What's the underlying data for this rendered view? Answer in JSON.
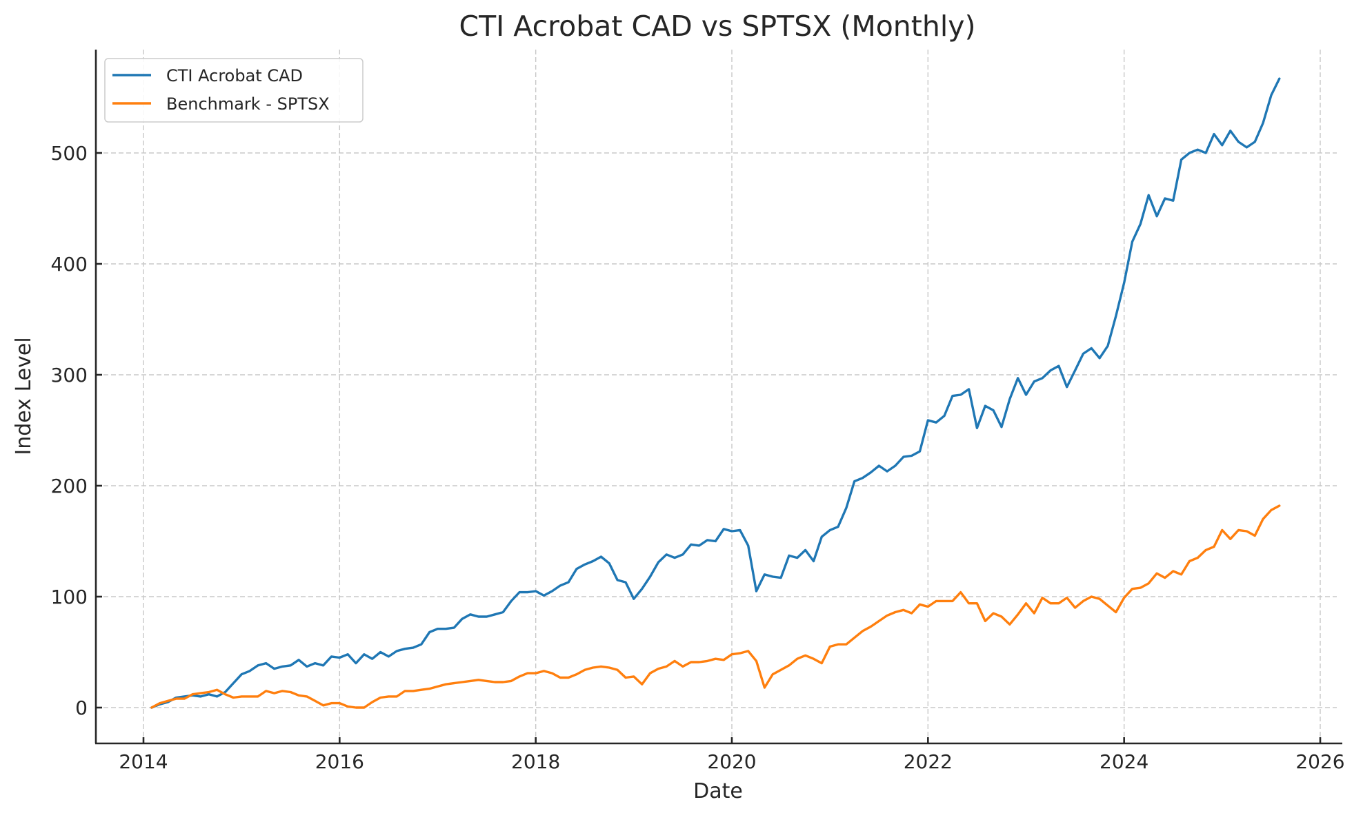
{
  "chart_data": {
    "type": "line",
    "title": "CTI Acrobat CAD vs SPTSX (Monthly)",
    "xlabel": "Date",
    "ylabel": "Index Level",
    "x_start": "2014-01",
    "x_frequency": "monthly",
    "xlim": [
      2013.55,
      2026.17
    ],
    "ylim": [
      -28,
      595
    ],
    "xticks": [
      "2014",
      "2016",
      "2018",
      "2020",
      "2022",
      "2024",
      "2026"
    ],
    "xtick_values": [
      2014,
      2016,
      2018,
      2020,
      2022,
      2024,
      2026
    ],
    "yticks": [
      "0",
      "100",
      "200",
      "300",
      "400",
      "500"
    ],
    "ytick_values": [
      0,
      100,
      200,
      300,
      400,
      500
    ],
    "grid": true,
    "legend_position": "top-left",
    "series": [
      {
        "name": "CTI Acrobat CAD",
        "color": "#1f77b4",
        "values": [
          0,
          3,
          5,
          9,
          10,
          11,
          10,
          12,
          10,
          14,
          22,
          30,
          33,
          38,
          40,
          35,
          37,
          38,
          43,
          37,
          40,
          38,
          46,
          45,
          48,
          40,
          48,
          44,
          50,
          46,
          51,
          53,
          54,
          57,
          68,
          71,
          71,
          72,
          80,
          84,
          82,
          82,
          84,
          86,
          96,
          104,
          104,
          105,
          101,
          105,
          110,
          113,
          125,
          129,
          132,
          136,
          130,
          115,
          113,
          98,
          107,
          118,
          131,
          138,
          135,
          138,
          147,
          146,
          151,
          150,
          161,
          159,
          160,
          146,
          105,
          120,
          118,
          117,
          137,
          135,
          142,
          132,
          154,
          160,
          163,
          180,
          204,
          207,
          212,
          218,
          213,
          218,
          226,
          227,
          231,
          259,
          257,
          263,
          281,
          282,
          287,
          252,
          272,
          268,
          253,
          278,
          297,
          282,
          294,
          297,
          304,
          308,
          289,
          304,
          319,
          324,
          315,
          326,
          353,
          383,
          420,
          436,
          462,
          443,
          459,
          457,
          494,
          500,
          503,
          500,
          517,
          507,
          520,
          510,
          505,
          510,
          527,
          552,
          567
        ]
      },
      {
        "name": "Benchmark - SPTSX",
        "color": "#ff7f0e",
        "values": [
          0,
          4,
          6,
          8,
          8,
          12,
          13,
          14,
          16,
          12,
          9,
          10,
          10,
          10,
          15,
          13,
          15,
          14,
          11,
          10,
          6,
          2,
          4,
          4,
          1,
          0,
          0,
          5,
          9,
          10,
          10,
          15,
          15,
          16,
          17,
          19,
          21,
          22,
          23,
          24,
          25,
          24,
          23,
          23,
          24,
          28,
          31,
          31,
          33,
          31,
          27,
          27,
          30,
          34,
          36,
          37,
          36,
          34,
          27,
          28,
          21,
          31,
          35,
          37,
          42,
          37,
          41,
          41,
          42,
          44,
          43,
          48,
          49,
          51,
          42,
          18,
          30,
          34,
          38,
          44,
          47,
          44,
          40,
          55,
          57,
          57,
          63,
          69,
          73,
          78,
          83,
          86,
          88,
          85,
          93,
          91,
          96,
          96,
          96,
          104,
          94,
          94,
          78,
          85,
          82,
          75,
          84,
          94,
          85,
          99,
          94,
          94,
          99,
          90,
          96,
          100,
          98,
          92,
          86,
          99,
          107,
          108,
          112,
          121,
          117,
          123,
          120,
          132,
          135,
          142,
          145,
          160,
          152,
          160,
          159,
          155,
          170,
          178,
          182
        ]
      }
    ]
  }
}
